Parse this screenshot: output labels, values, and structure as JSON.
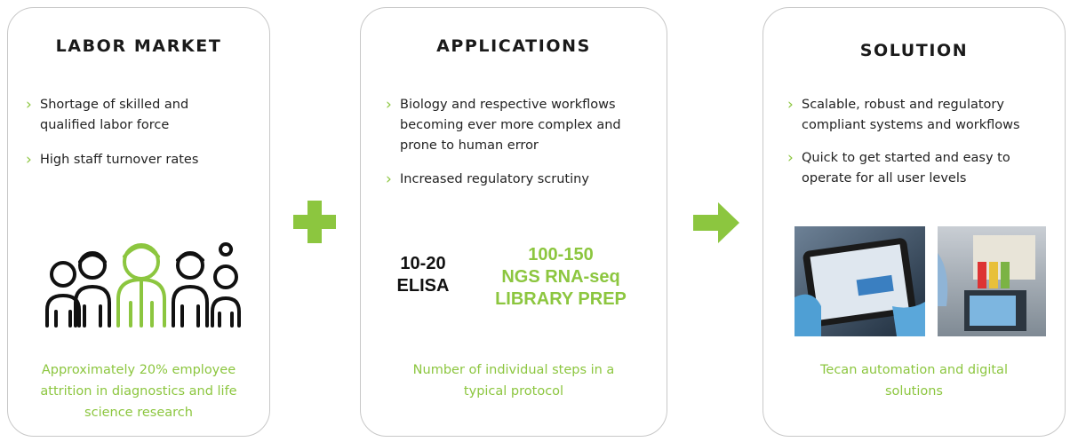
{
  "cards": [
    {
      "title": "LABOR MARKET",
      "bullets": [
        "Shortage of skilled and qualified labor force",
        "High staff turnover rates"
      ],
      "caption": "Approximately 20% employee attrition in diagnostics and life science research"
    },
    {
      "title": "APPLICATIONS",
      "bullets": [
        "Biology and respective workflows becoming ever more complex and prone to human error",
        "Increased regulatory scrutiny"
      ],
      "steps": [
        {
          "number": "10-20",
          "label": "ELISA"
        },
        {
          "number": "100-150",
          "label": "NGS RNA-seq LIBRARY PREP"
        }
      ],
      "caption": "Number of individual steps in a typical protocol"
    },
    {
      "title": "SOLUTION",
      "bullets": [
        "Scalable, robust and regulatory compliant systems and workflows",
        "Quick to get started and easy to operate for all user levels"
      ],
      "caption": "Tecan automation and digital solutions"
    }
  ]
}
